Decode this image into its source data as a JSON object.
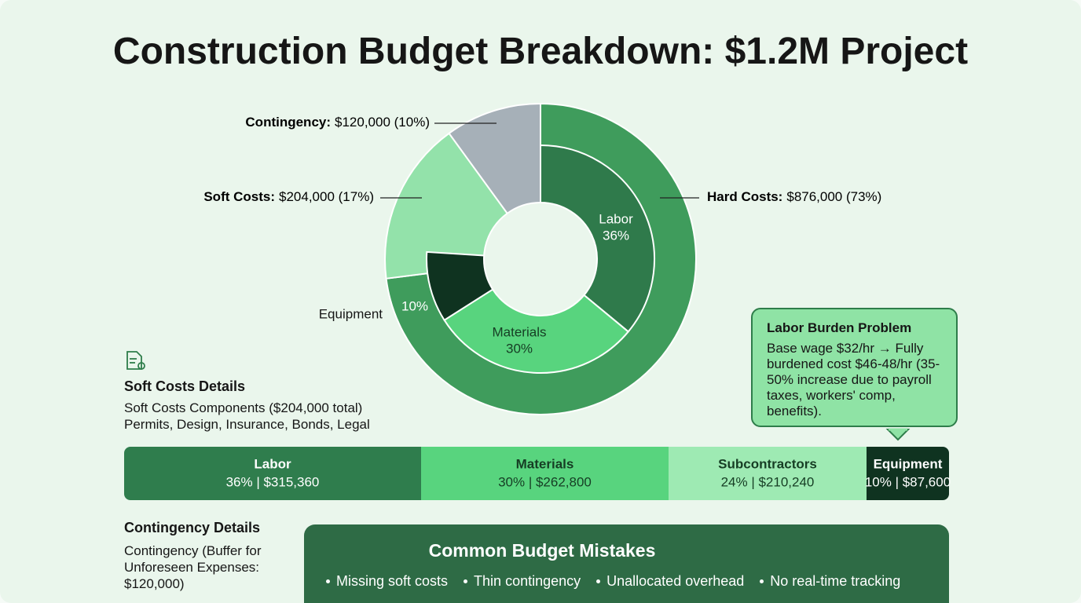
{
  "title": "Construction Budget Breakdown: $1.2M Project",
  "chart_data": [
    {
      "type": "donut",
      "outer": [
        {
          "name": "Hard Costs:",
          "label": "$876,000 (73%)",
          "value": 73,
          "color": "#3f9c5c"
        },
        {
          "name": "Soft Costs:",
          "label": "$204,000 (17%)",
          "value": 17,
          "color": "#93e2aa"
        },
        {
          "name": "Contingency:",
          "label": "$120,000 (10%)",
          "value": 10,
          "color": "#a6b0b8"
        }
      ],
      "inner": [
        {
          "name": "Labor",
          "label": "36%",
          "value": 36,
          "color": "#2f7a4b"
        },
        {
          "name": "Materials",
          "label": "30%",
          "value": 30,
          "color": "#58d47e"
        },
        {
          "name": "Equipment",
          "label": "10%",
          "value": 10,
          "color": "#0f3320"
        }
      ]
    },
    {
      "type": "stacked-bar",
      "series": [
        {
          "name": "Labor",
          "value": 36,
          "value_label": "36% | $315,360",
          "color": "#2f7d4d"
        },
        {
          "name": "Materials",
          "value": 30,
          "value_label": "30% | $262,800",
          "color": "#58d47e"
        },
        {
          "name": "Subcontractors",
          "value": 24,
          "value_label": "24% | $210,240",
          "color": "#9eeab3"
        },
        {
          "name": "Equipment",
          "value": 10,
          "value_label": "10% | $87,600",
          "color": "#0f3320"
        }
      ]
    }
  ],
  "callout": {
    "title": "Labor Burden Problem",
    "body": "Base wage $32/hr → Fully burdened cost $46-48/hr (35-50% increase due to payroll taxes, workers' comp, benefits)."
  },
  "soft_costs_details": {
    "title": "Soft Costs Details",
    "lines": [
      "Soft Costs Components ($204,000 total)",
      "Permits, Design, Insurance, Bonds, Legal"
    ]
  },
  "contingency_details": {
    "title": "Contingency Details",
    "body": "Contingency (Buffer for Unforeseen Expenses: $120,000)"
  },
  "common_mistakes": {
    "title": "Common Budget Mistakes",
    "items": [
      "Missing soft costs",
      "Thin contingency",
      "Unallocated overhead",
      "No real-time tracking"
    ]
  }
}
